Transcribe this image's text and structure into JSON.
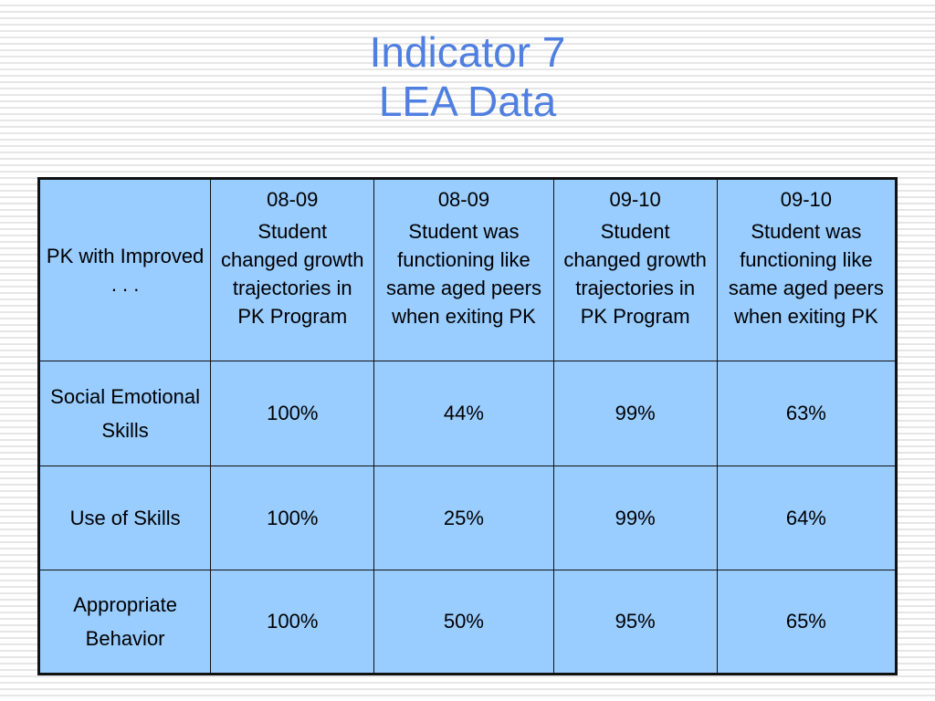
{
  "title": {
    "line1": "Indicator 7",
    "line2": "LEA Data"
  },
  "table": {
    "corner_label": "PK with Improved . . .",
    "columns": [
      {
        "year": "08-09",
        "description": "Student changed growth trajectories in PK Program"
      },
      {
        "year": "08-09",
        "description": "Student was functioning like same aged peers when exiting PK"
      },
      {
        "year": "09-10",
        "description": "Student changed growth trajectories in PK Program"
      },
      {
        "year": "09-10",
        "description": "Student was functioning like same aged peers when exiting PK"
      }
    ],
    "rows": [
      {
        "label_line1": "Social Emotional",
        "label_line2": "Skills",
        "values": [
          "100%",
          "44%",
          "99%",
          "63%"
        ]
      },
      {
        "label": "Use of Skills",
        "values": [
          "100%",
          "25%",
          "99%",
          "64%"
        ]
      },
      {
        "label_line1": "Appropriate",
        "label_line2": "Behavior",
        "values": [
          "100%",
          "50%",
          "95%",
          "65%"
        ]
      }
    ]
  },
  "colors": {
    "title": "#4f7fe0",
    "table_fill": "#99ccff",
    "border": "#111111"
  }
}
